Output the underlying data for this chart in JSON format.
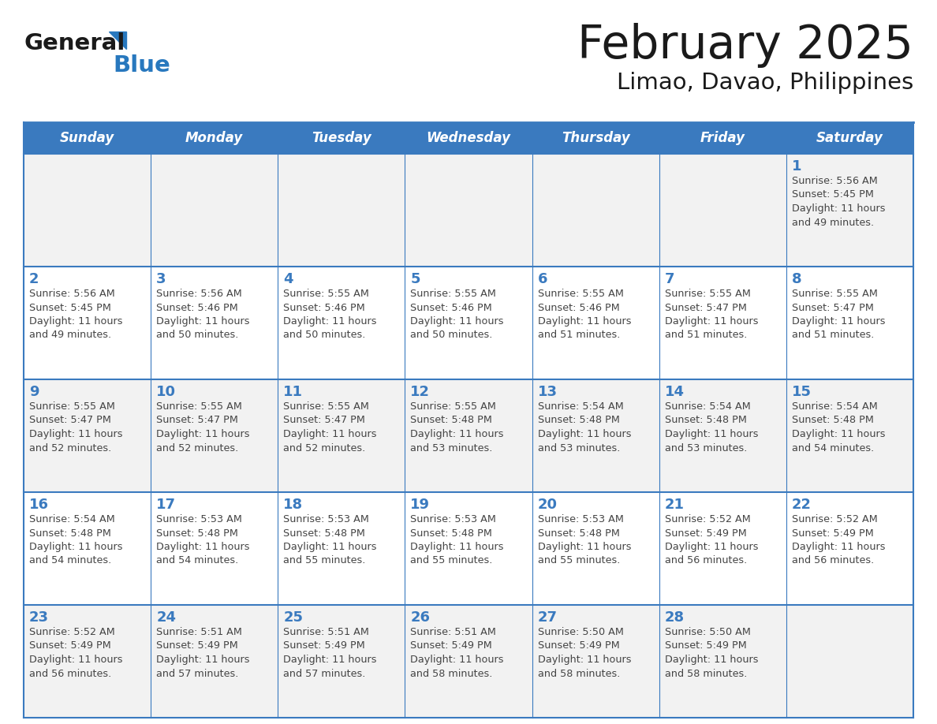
{
  "title": "February 2025",
  "subtitle": "Limao, Davao, Philippines",
  "days_of_week": [
    "Sunday",
    "Monday",
    "Tuesday",
    "Wednesday",
    "Thursday",
    "Friday",
    "Saturday"
  ],
  "header_bg": "#3a7abf",
  "header_text": "#FFFFFF",
  "cell_bg_odd": "#F2F2F2",
  "cell_bg_even": "#FFFFFF",
  "day_number_color": "#3a7abf",
  "cell_text_color": "#444444",
  "title_color": "#1a1a1a",
  "subtitle_color": "#1a1a1a",
  "logo_general_color": "#1a1a1a",
  "logo_blue_color": "#2878BE",
  "border_color": "#3a7abf",
  "weeks": [
    [
      {
        "day": null,
        "sunrise": null,
        "sunset": null,
        "daylight": null
      },
      {
        "day": null,
        "sunrise": null,
        "sunset": null,
        "daylight": null
      },
      {
        "day": null,
        "sunrise": null,
        "sunset": null,
        "daylight": null
      },
      {
        "day": null,
        "sunrise": null,
        "sunset": null,
        "daylight": null
      },
      {
        "day": null,
        "sunrise": null,
        "sunset": null,
        "daylight": null
      },
      {
        "day": null,
        "sunrise": null,
        "sunset": null,
        "daylight": null
      },
      {
        "day": 1,
        "sunrise": "5:56 AM",
        "sunset": "5:45 PM",
        "daylight": "11 hours\nand 49 minutes."
      }
    ],
    [
      {
        "day": 2,
        "sunrise": "5:56 AM",
        "sunset": "5:45 PM",
        "daylight": "11 hours\nand 49 minutes."
      },
      {
        "day": 3,
        "sunrise": "5:56 AM",
        "sunset": "5:46 PM",
        "daylight": "11 hours\nand 50 minutes."
      },
      {
        "day": 4,
        "sunrise": "5:55 AM",
        "sunset": "5:46 PM",
        "daylight": "11 hours\nand 50 minutes."
      },
      {
        "day": 5,
        "sunrise": "5:55 AM",
        "sunset": "5:46 PM",
        "daylight": "11 hours\nand 50 minutes."
      },
      {
        "day": 6,
        "sunrise": "5:55 AM",
        "sunset": "5:46 PM",
        "daylight": "11 hours\nand 51 minutes."
      },
      {
        "day": 7,
        "sunrise": "5:55 AM",
        "sunset": "5:47 PM",
        "daylight": "11 hours\nand 51 minutes."
      },
      {
        "day": 8,
        "sunrise": "5:55 AM",
        "sunset": "5:47 PM",
        "daylight": "11 hours\nand 51 minutes."
      }
    ],
    [
      {
        "day": 9,
        "sunrise": "5:55 AM",
        "sunset": "5:47 PM",
        "daylight": "11 hours\nand 52 minutes."
      },
      {
        "day": 10,
        "sunrise": "5:55 AM",
        "sunset": "5:47 PM",
        "daylight": "11 hours\nand 52 minutes."
      },
      {
        "day": 11,
        "sunrise": "5:55 AM",
        "sunset": "5:47 PM",
        "daylight": "11 hours\nand 52 minutes."
      },
      {
        "day": 12,
        "sunrise": "5:55 AM",
        "sunset": "5:48 PM",
        "daylight": "11 hours\nand 53 minutes."
      },
      {
        "day": 13,
        "sunrise": "5:54 AM",
        "sunset": "5:48 PM",
        "daylight": "11 hours\nand 53 minutes."
      },
      {
        "day": 14,
        "sunrise": "5:54 AM",
        "sunset": "5:48 PM",
        "daylight": "11 hours\nand 53 minutes."
      },
      {
        "day": 15,
        "sunrise": "5:54 AM",
        "sunset": "5:48 PM",
        "daylight": "11 hours\nand 54 minutes."
      }
    ],
    [
      {
        "day": 16,
        "sunrise": "5:54 AM",
        "sunset": "5:48 PM",
        "daylight": "11 hours\nand 54 minutes."
      },
      {
        "day": 17,
        "sunrise": "5:53 AM",
        "sunset": "5:48 PM",
        "daylight": "11 hours\nand 54 minutes."
      },
      {
        "day": 18,
        "sunrise": "5:53 AM",
        "sunset": "5:48 PM",
        "daylight": "11 hours\nand 55 minutes."
      },
      {
        "day": 19,
        "sunrise": "5:53 AM",
        "sunset": "5:48 PM",
        "daylight": "11 hours\nand 55 minutes."
      },
      {
        "day": 20,
        "sunrise": "5:53 AM",
        "sunset": "5:48 PM",
        "daylight": "11 hours\nand 55 minutes."
      },
      {
        "day": 21,
        "sunrise": "5:52 AM",
        "sunset": "5:49 PM",
        "daylight": "11 hours\nand 56 minutes."
      },
      {
        "day": 22,
        "sunrise": "5:52 AM",
        "sunset": "5:49 PM",
        "daylight": "11 hours\nand 56 minutes."
      }
    ],
    [
      {
        "day": 23,
        "sunrise": "5:52 AM",
        "sunset": "5:49 PM",
        "daylight": "11 hours\nand 56 minutes."
      },
      {
        "day": 24,
        "sunrise": "5:51 AM",
        "sunset": "5:49 PM",
        "daylight": "11 hours\nand 57 minutes."
      },
      {
        "day": 25,
        "sunrise": "5:51 AM",
        "sunset": "5:49 PM",
        "daylight": "11 hours\nand 57 minutes."
      },
      {
        "day": 26,
        "sunrise": "5:51 AM",
        "sunset": "5:49 PM",
        "daylight": "11 hours\nand 58 minutes."
      },
      {
        "day": 27,
        "sunrise": "5:50 AM",
        "sunset": "5:49 PM",
        "daylight": "11 hours\nand 58 minutes."
      },
      {
        "day": 28,
        "sunrise": "5:50 AM",
        "sunset": "5:49 PM",
        "daylight": "11 hours\nand 58 minutes."
      },
      {
        "day": null,
        "sunrise": null,
        "sunset": null,
        "daylight": null
      }
    ]
  ],
  "fig_width": 11.88,
  "fig_height": 9.18,
  "dpi": 100
}
